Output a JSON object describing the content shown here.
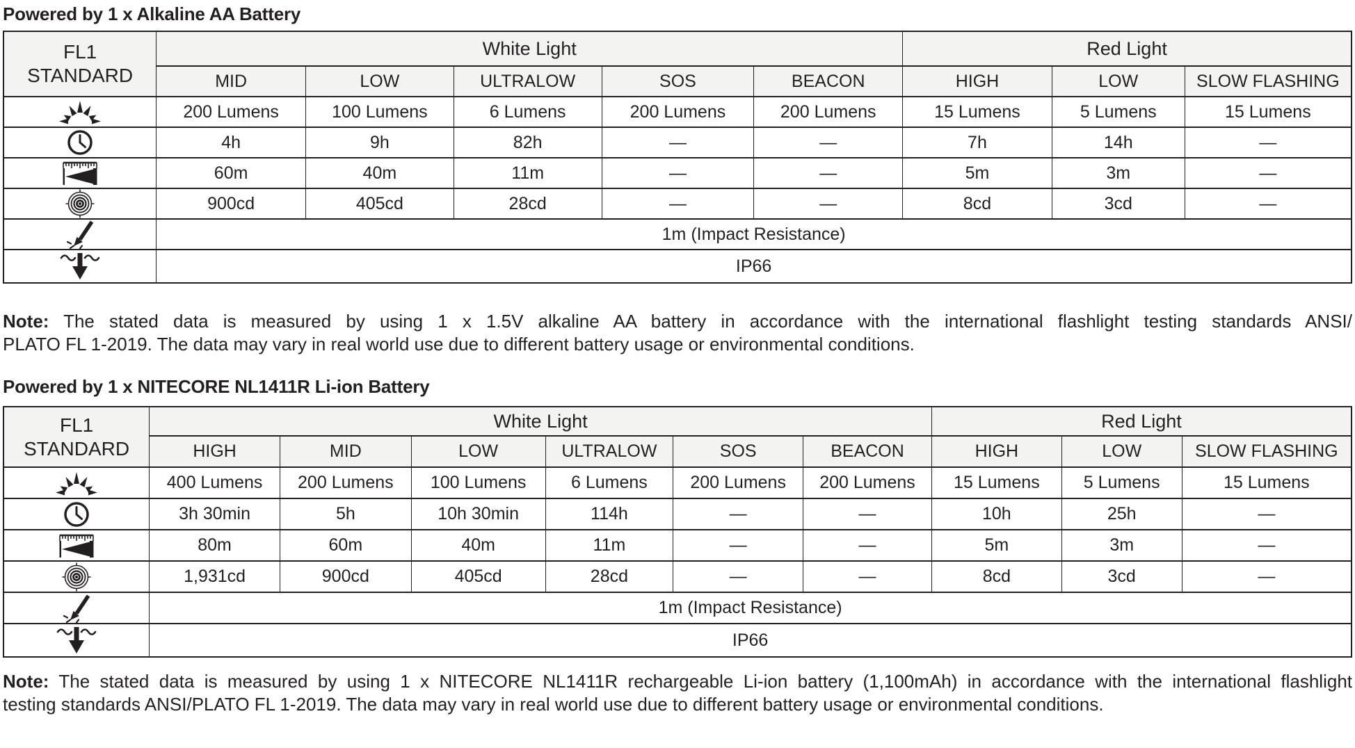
{
  "colors": {
    "text": "#231f20",
    "border": "#231f20",
    "header_background": "#f3f4f1",
    "cell_background": "#ffffff",
    "page_background": "#ffffff"
  },
  "sections": [
    {
      "title": "Powered by 1 x Alkaline AA Battery",
      "table": {
        "corner": {
          "line1": "FL1",
          "line2": "STANDARD"
        },
        "groups": [
          {
            "label": "White Light",
            "span": 5
          },
          {
            "label": "Red Light",
            "span": 3
          }
        ],
        "modes": [
          "MID",
          "LOW",
          "ULTRALOW",
          "SOS",
          "BEACON",
          "HIGH",
          "LOW",
          "SLOW FLASHING"
        ],
        "col_widths_pct": [
          11.34,
          11.08,
          10.98,
          10.98,
          11.29,
          11.03,
          11.08,
          9.85,
          12.37
        ],
        "spec_rows": [
          {
            "icon": "brightness-icon",
            "values": [
              "200 Lumens",
              "100 Lumens",
              "6 Lumens",
              "200 Lumens",
              "200 Lumens",
              "15 Lumens",
              "5 Lumens",
              "15 Lumens"
            ]
          },
          {
            "icon": "runtime-icon",
            "values": [
              "4h",
              "9h",
              "82h",
              "—",
              "—",
              "7h",
              "14h",
              "—"
            ]
          },
          {
            "icon": "beam-distance-icon",
            "values": [
              "60m",
              "40m",
              "11m",
              "—",
              "—",
              "5m",
              "3m",
              "—"
            ]
          },
          {
            "icon": "peak-beam-intensity-icon",
            "values": [
              "900cd",
              "405cd",
              "28cd",
              "—",
              "—",
              "8cd",
              "3cd",
              "—"
            ]
          }
        ],
        "full_rows": [
          {
            "icon": "impact-resistance-icon",
            "value": "1m (Impact Resistance)"
          },
          {
            "icon": "waterproof-icon",
            "value": "IP66"
          }
        ]
      },
      "note": {
        "label": "Note:",
        "line1": " The stated data is measured by using 1 x 1.5V alkaline AA battery in accordance with the international flashlight testing standards ANSI/",
        "line2": "PLATO FL 1-2019. The data may vary in real world use due to different battery usage or environmental conditions."
      }
    },
    {
      "title": "Powered by 1 x NITECORE NL1411R Li-ion Battery",
      "table": {
        "corner": {
          "line1": "FL1",
          "line2": "STANDARD"
        },
        "groups": [
          {
            "label": "White Light",
            "span": 6
          },
          {
            "label": "Red Light",
            "span": 3
          }
        ],
        "modes": [
          "HIGH",
          "MID",
          "LOW",
          "ULTRALOW",
          "SOS",
          "BEACON",
          "HIGH",
          "LOW",
          "SLOW FLASHING"
        ],
        "col_widths_pct": [
          10.82,
          9.69,
          9.74,
          9.95,
          9.48,
          9.64,
          9.54,
          9.64,
          8.92,
          12.58
        ],
        "spec_rows": [
          {
            "icon": "brightness-icon",
            "values": [
              "400 Lumens",
              "200 Lumens",
              "100 Lumens",
              "6 Lumens",
              "200 Lumens",
              "200 Lumens",
              "15 Lumens",
              "5 Lumens",
              "15 Lumens"
            ]
          },
          {
            "icon": "runtime-icon",
            "values": [
              "3h 30min",
              "5h",
              "10h 30min",
              "114h",
              "—",
              "—",
              "10h",
              "25h",
              "—"
            ]
          },
          {
            "icon": "beam-distance-icon",
            "values": [
              "80m",
              "60m",
              "40m",
              "11m",
              "—",
              "—",
              "5m",
              "3m",
              "—"
            ]
          },
          {
            "icon": "peak-beam-intensity-icon",
            "values": [
              "1,931cd",
              "900cd",
              "405cd",
              "28cd",
              "—",
              "—",
              "8cd",
              "3cd",
              "—"
            ]
          }
        ],
        "full_rows": [
          {
            "icon": "impact-resistance-icon",
            "value": "1m (Impact Resistance)"
          },
          {
            "icon": "waterproof-icon",
            "value": "IP66"
          }
        ]
      },
      "note": {
        "label": "Note:",
        "line1": " The stated data is measured by using 1 x NITECORE NL1411R rechargeable Li-ion battery (1,100mAh) in accordance with the international flashlight",
        "line2": "testing standards ANSI/PLATO FL 1-2019. The data may vary in real world use due to different battery usage or environmental conditions."
      }
    }
  ]
}
